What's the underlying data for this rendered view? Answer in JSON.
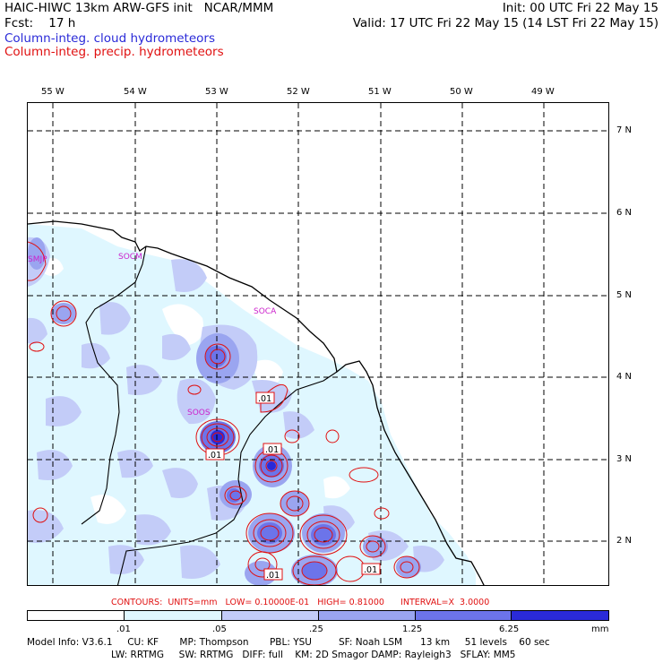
{
  "header": {
    "line1_left": "HAIC-HIWC 13km ARW-GFS init   NCAR/MMM",
    "line1_right": "Init: 00 UTC Fri 22 May 15",
    "line2_left": "Fcst:    17 h",
    "line2_right": "Valid: 17 UTC Fri 22 May 15 (14 LST Fri 22 May 15)",
    "legend_cloud": "Column-integ. cloud hydrometeors",
    "legend_precip": "Column-integ. precip. hydrometeors"
  },
  "colors": {
    "cloud_legend": "#2a2ad8",
    "precip_legend": "#e01010",
    "station_label": "#cc22cc",
    "shade_1": "#dff7ff",
    "shade_2": "#c3ccf8",
    "shade_3": "#9aa5f0",
    "shade_4": "#6c74ea",
    "shade_5": "#2a2ad8"
  },
  "map": {
    "longitude_labels": [
      "55 W",
      "54 W",
      "53 W",
      "52 W",
      "51 W",
      "50 W",
      "49 W"
    ],
    "latitude_labels": [
      "7 N",
      "6 N",
      "5 N",
      "4 N",
      "3 N",
      "2 N"
    ],
    "stations": [
      "SMJP",
      "SOCM",
      "SOCA",
      "SOOS"
    ],
    "contour_labels": [
      ".01",
      ".01",
      ".01",
      ".01",
      ".01"
    ]
  },
  "contours_info": "CONTOURS:  UNITS=mm   LOW= 0.10000E-01   HIGH= 0.81000      INTERVAL=X  3.0000",
  "colorbar": {
    "labels": [
      ".01",
      ".05",
      ".25",
      "1.25",
      "6.25"
    ],
    "units": "mm"
  },
  "model_info": {
    "line1": "Model Info: V3.6.1     CU: KF       MP: Thompson       PBL: YSU         SF: Noah LSM      13 km     51 levels    60 sec",
    "line2": "LW: RRTMG     SW: RRTMG   DIFF: full    KM: 2D Smagor DAMP: Rayleigh3   SFLAY: MM5"
  }
}
